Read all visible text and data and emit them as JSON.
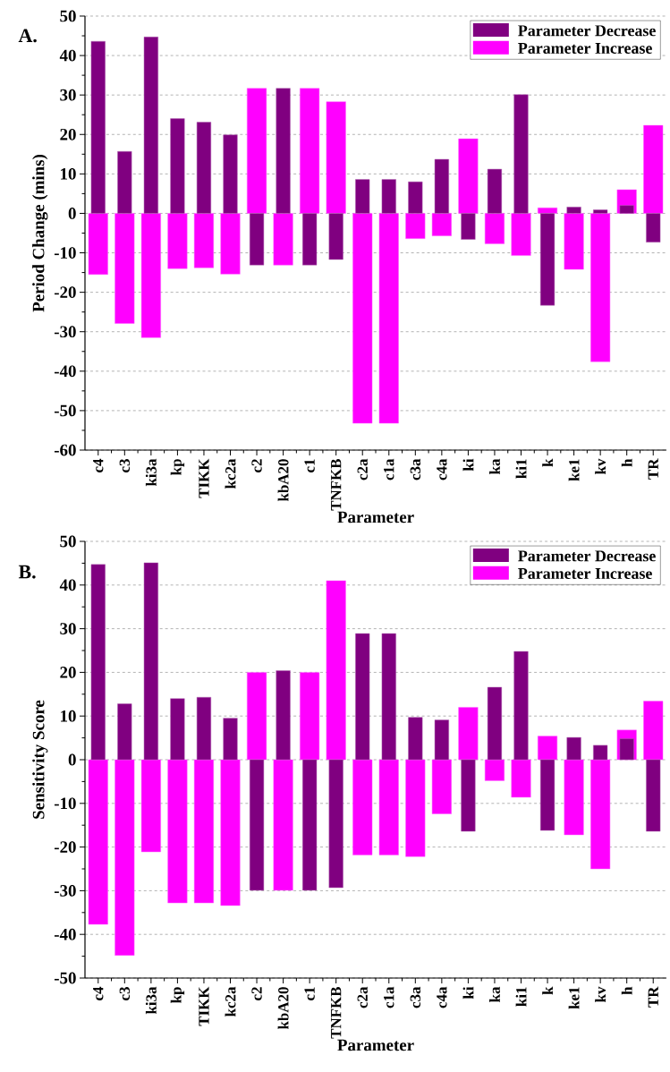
{
  "chart_data": [
    {
      "type": "bar",
      "title": "A.",
      "xlabel": "Parameter",
      "ylabel": "Period Change (mins)",
      "categories": [
        "c4",
        "c3",
        "ki3a",
        "kp",
        "TIKK",
        "kc2a",
        "c2",
        "kbA20",
        "c1",
        "TNFKB",
        "c2a",
        "c1a",
        "c3a",
        "c4a",
        "ki",
        "ka",
        "ki1",
        "k",
        "ke1",
        "kv",
        "h",
        "TR"
      ],
      "series": [
        {
          "name": "Parameter Decrease",
          "color": "#800080",
          "values": [
            43.6,
            15.7,
            44.7,
            24.0,
            23.1,
            19.9,
            -13.1,
            31.7,
            -13.1,
            -11.7,
            8.6,
            8.6,
            8.0,
            13.7,
            -6.6,
            11.2,
            30.1,
            -23.3,
            1.6,
            0.9,
            2.0,
            -7.3
          ]
        },
        {
          "name": "Parameter Increase",
          "color": "#ff00ff",
          "values": [
            -15.5,
            -27.9,
            -31.5,
            -14.0,
            -13.8,
            -15.4,
            31.7,
            -13.1,
            31.7,
            28.3,
            -53.2,
            -53.2,
            -6.4,
            -5.7,
            18.9,
            -7.7,
            -10.7,
            1.4,
            -14.2,
            -37.6,
            6.0,
            22.3
          ]
        }
      ],
      "ylim": [
        -60,
        50
      ],
      "yticks": [
        -60,
        -50,
        -40,
        -30,
        -20,
        -10,
        0,
        10,
        20,
        30,
        40,
        50
      ],
      "grid": "y",
      "legend": "top right"
    },
    {
      "type": "bar",
      "title": "B.",
      "xlabel": "Parameter",
      "ylabel": "Sensitivity Score",
      "categories": [
        "c4",
        "c3",
        "ki3a",
        "kp",
        "TIKK",
        "kc2a",
        "c2",
        "kbA20",
        "c1",
        "TNFKB",
        "c2a",
        "c1a",
        "c3a",
        "c4a",
        "ki",
        "ka",
        "ki1",
        "k",
        "ke1",
        "kv",
        "h",
        "TR"
      ],
      "series": [
        {
          "name": "Parameter Decrease",
          "color": "#800080",
          "values": [
            44.7,
            12.8,
            45.1,
            14.0,
            14.3,
            9.5,
            -29.9,
            20.4,
            -29.9,
            -29.3,
            28.9,
            28.9,
            9.7,
            9.1,
            -16.4,
            16.6,
            24.8,
            -16.2,
            5.1,
            3.3,
            4.8,
            -16.4
          ]
        },
        {
          "name": "Parameter Increase",
          "color": "#ff00ff",
          "values": [
            -37.7,
            -44.8,
            -21.1,
            -32.8,
            -32.8,
            -33.4,
            20.0,
            -29.9,
            20.0,
            41.0,
            -21.8,
            -21.8,
            -22.2,
            -12.4,
            12.0,
            -4.8,
            -8.6,
            5.4,
            -17.2,
            -25.0,
            6.8,
            13.4
          ]
        }
      ],
      "ylim": [
        -50,
        50
      ],
      "yticks": [
        -50,
        -40,
        -30,
        -20,
        -10,
        0,
        10,
        20,
        30,
        40,
        50
      ],
      "grid": "y",
      "legend": "top right"
    }
  ]
}
